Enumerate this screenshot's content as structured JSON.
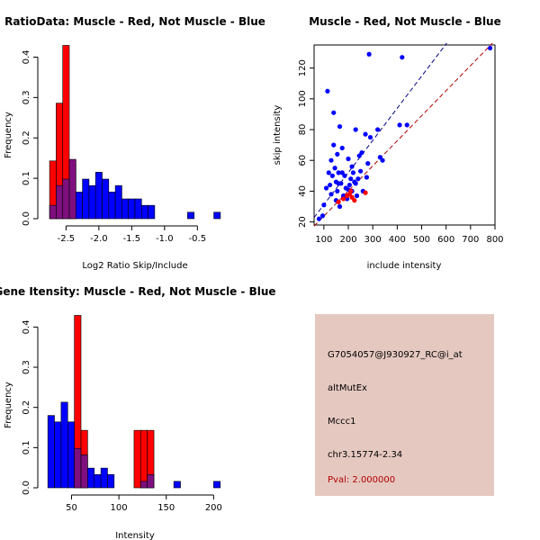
{
  "colors": {
    "red": "#ff0000",
    "blue": "#0000ff",
    "overlap": "#7f0f7f",
    "darkred": "#b00000",
    "darkblue": "#000080",
    "panel_bg": "#e5c8c0"
  },
  "chart_data": [
    {
      "type": "histogram",
      "title": "RatioData: Muscle - Red, Not Muscle - Blue",
      "xlabel": "Log2 Ratio Skip/Include",
      "ylabel": "Frequency",
      "xlim": [
        -2.82,
        -0.08
      ],
      "ylim": [
        0,
        0.43
      ],
      "xticks": [
        -2.5,
        -2.0,
        -1.5,
        -1.0,
        -0.5
      ],
      "xtick_labels": [
        "-2.5",
        "-2.0",
        "-1.5",
        "-1.0",
        "-0.5"
      ],
      "yticks": [
        0,
        0.1,
        0.2,
        0.3,
        0.4
      ],
      "ytick_labels": [
        "0.0",
        "0.1",
        "0.2",
        "0.3",
        "0.4"
      ],
      "bin_width": 0.1,
      "red": {
        "name": "Muscle",
        "bins": [
          {
            "x0": -2.75,
            "v": 0.143
          },
          {
            "x0": -2.65,
            "v": 0.286
          },
          {
            "x0": -2.55,
            "v": 0.429
          },
          {
            "x0": -2.45,
            "v": 0.143
          }
        ]
      },
      "blue": {
        "name": "Not Muscle",
        "bins": [
          {
            "x0": -2.75,
            "v": 0.033
          },
          {
            "x0": -2.65,
            "v": 0.082
          },
          {
            "x0": -2.55,
            "v": 0.098
          },
          {
            "x0": -2.45,
            "v": 0.147
          },
          {
            "x0": -2.35,
            "v": 0.066
          },
          {
            "x0": -2.25,
            "v": 0.098
          },
          {
            "x0": -2.15,
            "v": 0.082
          },
          {
            "x0": -2.05,
            "v": 0.115
          },
          {
            "x0": -1.95,
            "v": 0.098
          },
          {
            "x0": -1.85,
            "v": 0.066
          },
          {
            "x0": -1.75,
            "v": 0.082
          },
          {
            "x0": -1.65,
            "v": 0.049
          },
          {
            "x0": -1.55,
            "v": 0.049
          },
          {
            "x0": -1.45,
            "v": 0.049
          },
          {
            "x0": -1.35,
            "v": 0.033
          },
          {
            "x0": -1.25,
            "v": 0.033
          },
          {
            "x0": -0.65,
            "v": 0.016
          },
          {
            "x0": -0.25,
            "v": 0.016
          }
        ]
      }
    },
    {
      "type": "scatter",
      "title": "Muscle - Red, Not Muscle - Blue",
      "xlabel": "include intensity",
      "ylabel": "skip intensity",
      "xlim": [
        60,
        800
      ],
      "ylim": [
        18,
        135
      ],
      "xticks": [
        100,
        200,
        300,
        400,
        500,
        600,
        700,
        800
      ],
      "xtick_labels": [
        "100",
        "200",
        "300",
        "400",
        "500",
        "600",
        "700",
        "800"
      ],
      "yticks": [
        20,
        40,
        60,
        80,
        100,
        120
      ],
      "ytick_labels": [
        "20",
        "40",
        "60",
        "80",
        "100",
        "120"
      ],
      "fit_blue": {
        "slope": 0.209,
        "intercept": 10.3
      },
      "fit_red": {
        "slope": 0.163,
        "intercept": 7.5
      },
      "red_points": [
        [
          160,
          33
        ],
        [
          180,
          35
        ],
        [
          195,
          37
        ],
        [
          205,
          38
        ],
        [
          210,
          40
        ],
        [
          215,
          36
        ],
        [
          225,
          34
        ],
        [
          270,
          39
        ]
      ],
      "blue_points": [
        [
          80,
          22
        ],
        [
          95,
          24
        ],
        [
          100,
          31
        ],
        [
          115,
          105
        ],
        [
          110,
          42
        ],
        [
          120,
          52
        ],
        [
          125,
          44
        ],
        [
          130,
          38
        ],
        [
          130,
          60
        ],
        [
          135,
          50
        ],
        [
          140,
          91
        ],
        [
          140,
          70
        ],
        [
          145,
          55
        ],
        [
          150,
          46
        ],
        [
          150,
          34
        ],
        [
          155,
          40
        ],
        [
          155,
          64
        ],
        [
          160,
          52
        ],
        [
          160,
          45
        ],
        [
          165,
          30
        ],
        [
          165,
          82
        ],
        [
          170,
          45
        ],
        [
          175,
          68
        ],
        [
          175,
          52
        ],
        [
          180,
          37
        ],
        [
          180,
          36
        ],
        [
          185,
          50
        ],
        [
          190,
          42
        ],
        [
          195,
          35
        ],
        [
          200,
          41
        ],
        [
          200,
          61
        ],
        [
          205,
          44
        ],
        [
          210,
          48
        ],
        [
          215,
          56
        ],
        [
          215,
          40
        ],
        [
          220,
          52
        ],
        [
          225,
          46
        ],
        [
          230,
          80
        ],
        [
          230,
          45
        ],
        [
          235,
          37
        ],
        [
          240,
          48
        ],
        [
          245,
          63
        ],
        [
          250,
          53
        ],
        [
          255,
          65
        ],
        [
          260,
          40
        ],
        [
          270,
          77
        ],
        [
          275,
          49
        ],
        [
          280,
          58
        ],
        [
          285,
          129
        ],
        [
          290,
          75
        ],
        [
          320,
          80
        ],
        [
          330,
          62
        ],
        [
          340,
          60
        ],
        [
          410,
          83
        ],
        [
          420,
          127
        ],
        [
          440,
          83
        ],
        [
          780,
          133
        ]
      ]
    },
    {
      "type": "histogram",
      "title": "Gene Itensity: Muscle - Red, Not Muscle - Blue",
      "xlabel": "Intensity",
      "ylabel": "Frequency",
      "xlim": [
        22,
        212
      ],
      "ylim": [
        0,
        0.43
      ],
      "xticks": [
        50,
        100,
        150,
        200
      ],
      "xtick_labels": [
        "50",
        "100",
        "150",
        "200"
      ],
      "yticks": [
        0,
        0.1,
        0.2,
        0.3,
        0.4
      ],
      "ytick_labels": [
        "0.0",
        "0.1",
        "0.2",
        "0.3",
        "0.4"
      ],
      "bin_width": 7,
      "red": {
        "name": "Muscle",
        "bins": [
          {
            "x0": 53,
            "v": 0.429
          },
          {
            "x0": 60,
            "v": 0.143
          },
          {
            "x0": 116,
            "v": 0.143
          },
          {
            "x0": 123,
            "v": 0.143
          },
          {
            "x0": 130,
            "v": 0.143
          }
        ]
      },
      "blue": {
        "name": "Not Muscle",
        "bins": [
          {
            "x0": 25,
            "v": 0.18
          },
          {
            "x0": 32,
            "v": 0.164
          },
          {
            "x0": 39,
            "v": 0.213
          },
          {
            "x0": 46,
            "v": 0.164
          },
          {
            "x0": 53,
            "v": 0.098
          },
          {
            "x0": 60,
            "v": 0.082
          },
          {
            "x0": 67,
            "v": 0.049
          },
          {
            "x0": 74,
            "v": 0.033
          },
          {
            "x0": 81,
            "v": 0.049
          },
          {
            "x0": 88,
            "v": 0.033
          },
          {
            "x0": 123,
            "v": 0.016
          },
          {
            "x0": 130,
            "v": 0.033
          },
          {
            "x0": 158,
            "v": 0.016
          },
          {
            "x0": 200,
            "v": 0.016
          }
        ]
      }
    }
  ],
  "info_panel": {
    "probe_id": "G7054057@J930927_RC@i_at",
    "event_type": "altMutEx",
    "gene": "Mccc1",
    "location": "chr3.15774-2.34",
    "pval": "Pval: 2.000000"
  }
}
